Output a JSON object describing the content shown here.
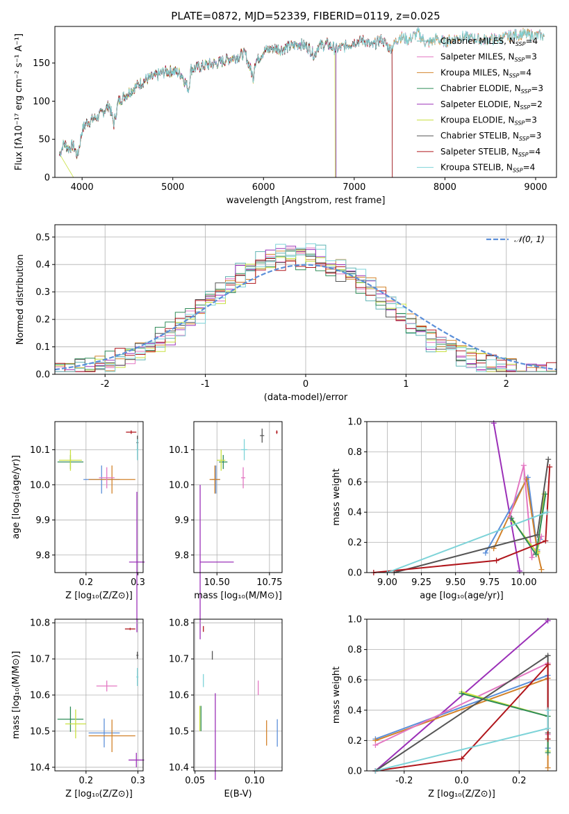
{
  "figure": {
    "title": "PLATE=0872, MJD=52339, FIBERID=0119, z=0.025"
  },
  "chart_data": [
    {
      "type": "line",
      "panel": "spectrum",
      "xlabel": "wavelength [Angstrom, rest frame]",
      "ylabel": "Flux [fλ10⁻¹⁷ erg cm⁻² s⁻¹ A⁻¹]",
      "xlim": [
        3700,
        9230
      ],
      "ylim": [
        0,
        198
      ],
      "xticks": [
        4000,
        5000,
        6000,
        7000,
        8000,
        9000
      ],
      "yticks": [
        0,
        50,
        100,
        150
      ],
      "grid": false,
      "legend": "upper right",
      "spectrum_anchors": {
        "x": [
          3750,
          3800,
          3850,
          3900,
          3950,
          4000,
          4050,
          4100,
          4200,
          4300,
          4350,
          4400,
          4500,
          4600,
          4700,
          4800,
          4900,
          5000,
          5100,
          5175,
          5200,
          5300,
          5400,
          5500,
          5600,
          5700,
          5800,
          5890,
          5900,
          6000,
          6100,
          6200,
          6300,
          6400,
          6500,
          6563,
          6600,
          6700,
          6800,
          6900,
          7000,
          7100,
          7200,
          7300,
          7400,
          7500,
          7600,
          7700,
          7800,
          7900,
          8000,
          8200,
          8400,
          8600,
          8800,
          9000
        ],
        "y": [
          30,
          45,
          38,
          42,
          28,
          62,
          72,
          75,
          82,
          95,
          70,
          100,
          110,
          120,
          128,
          132,
          138,
          140,
          135,
          115,
          142,
          145,
          148,
          150,
          155,
          158,
          162,
          130,
          150,
          165,
          170,
          168,
          172,
          175,
          170,
          160,
          172,
          175,
          168,
          172,
          178,
          180,
          172,
          182,
          168,
          185,
          180,
          190,
          175,
          182,
          178,
          185,
          180,
          182,
          188,
          186
        ]
      },
      "series": [
        {
          "name": "Chabrier MILES, N$_{SSP}$=4",
          "label_main": "Chabrier MILES, N",
          "label_sub": "SSP",
          "label_tail": "=4",
          "color": "#5fb3b3",
          "x_end": 9100
        },
        {
          "name": "Salpeter MILES, N$_{SSP}$=3",
          "label_main": "Salpeter MILES, N",
          "label_sub": "SSP",
          "label_tail": "=3",
          "color": "#e377c2",
          "x_end": 9100
        },
        {
          "name": "Kroupa MILES, N$_{SSP}$=4",
          "label_main": "Kroupa MILES, N",
          "label_sub": "SSP",
          "label_tail": "=4",
          "color": "#d2822a",
          "x_end": 9100
        },
        {
          "name": "Chabrier ELODIE, N$_{SSP}$=3",
          "label_main": "Chabrier ELODIE, N",
          "label_sub": "SSP",
          "label_tail": "=3",
          "color": "#2e8b57",
          "x_end": 6800
        },
        {
          "name": "Salpeter ELODIE, N$_{SSP}$=2",
          "label_main": "Salpeter ELODIE, N",
          "label_sub": "SSP",
          "label_tail": "=2",
          "color": "#9b30b8",
          "x_end": 6800
        },
        {
          "name": "Kroupa ELODIE, N$_{SSP}$=3",
          "label_main": "Kroupa ELODIE, N",
          "label_sub": "SSP",
          "label_tail": "=3",
          "color": "#c8e040",
          "x_end": 6790
        },
        {
          "name": "Chabrier STELIB, N$_{SSP}$=3",
          "label_main": "Chabrier STELIB, N",
          "label_sub": "SSP",
          "label_tail": "=3",
          "color": "#555555",
          "x_end": 7420
        },
        {
          "name": "Salpeter STELIB, N$_{SSP}$=4",
          "label_main": "Salpeter STELIB, N",
          "label_sub": "SSP",
          "label_tail": "=4",
          "color": "#b0161c",
          "x_end": 7420
        },
        {
          "name": "Kroupa STELIB, N$_{SSP}$=4",
          "label_main": "Kroupa STELIB, N",
          "label_sub": "SSP",
          "label_tail": "=4",
          "color": "#7dd3d8",
          "x_end": 9100
        }
      ]
    },
    {
      "type": "histogram",
      "panel": "residuals",
      "xlabel": "(data-model)/error",
      "ylabel": "Normed distribution",
      "xlim": [
        -2.5,
        2.5
      ],
      "ylim": [
        0,
        0.545
      ],
      "xticks": [
        -2,
        -1,
        0,
        1,
        2
      ],
      "yticks": [
        0.0,
        0.1,
        0.2,
        0.3,
        0.4,
        0.5
      ],
      "grid": true,
      "legend": "upper right",
      "reference_curve": {
        "name": "$\\mathcal{N}(0,1)$",
        "label": "𝒩(0, 1)",
        "mean": 0,
        "sigma": 1,
        "color": "#5b8fd9",
        "dashed": true
      },
      "bin_width": 0.1,
      "series_bins_from": -2.5
    },
    {
      "type": "scatter-errorbar",
      "panel": "Z-age",
      "xlabel": "Z [log₁₀(Z/Z⊙)]",
      "ylabel": "age  [log₁₀(age/yr)]",
      "xlim": [
        0.14,
        0.31
      ],
      "ylim": [
        9.75,
        10.18
      ],
      "xticks": [
        0.2,
        0.3
      ],
      "yticks": [
        9.8,
        9.9,
        10.0,
        10.1
      ],
      "grid": true,
      "points": [
        {
          "color": "#b0161c",
          "x": 0.287,
          "y": 10.15,
          "xerr": 0.01,
          "yerr": 0.005
        },
        {
          "color": "#555555",
          "x": 0.299,
          "y": 10.12,
          "xerr": 0.002,
          "yerr": 0.02
        },
        {
          "color": "#7dd3d8",
          "x": 0.299,
          "y": 10.1,
          "xerr": 0.002,
          "yerr": 0.03
        },
        {
          "color": "#2e8b57",
          "x": 0.17,
          "y": 10.065,
          "xerr": 0.025,
          "yerr": 0.02
        },
        {
          "color": "#c8e040",
          "x": 0.17,
          "y": 10.07,
          "xerr": 0.022,
          "yerr": 0.03
        },
        {
          "color": "#5b8fd9",
          "x": 0.23,
          "y": 10.015,
          "xerr": 0.035,
          "yerr": 0.04
        },
        {
          "color": "#d2822a",
          "x": 0.25,
          "y": 10.015,
          "xerr": 0.045,
          "yerr": 0.04
        },
        {
          "color": "#e377c2",
          "x": 0.24,
          "y": 10.02,
          "xerr": 0.015,
          "yerr": 0.03
        },
        {
          "color": "#9b30b8",
          "x": 0.298,
          "y": 9.78,
          "xerr": 0.015,
          "yerr": 0.2
        }
      ]
    },
    {
      "type": "scatter-errorbar",
      "panel": "mass-age",
      "xlabel": "mass [log₁₀(M/M⊙)]",
      "ylabel": "",
      "xlim": [
        10.39,
        10.81
      ],
      "ylim": [
        9.75,
        10.18
      ],
      "xticks": [
        10.5,
        10.75
      ],
      "yticks": [
        9.8,
        9.9,
        10.0,
        10.1
      ],
      "grid": true,
      "points": [
        {
          "color": "#b0161c",
          "x": 10.785,
          "y": 10.15,
          "xerr": 0.004,
          "yerr": 0.005
        },
        {
          "color": "#555555",
          "x": 10.715,
          "y": 10.14,
          "xerr": 0.01,
          "yerr": 0.02
        },
        {
          "color": "#7dd3d8",
          "x": 10.63,
          "y": 10.1,
          "xerr": 0.015,
          "yerr": 0.03
        },
        {
          "color": "#2e8b57",
          "x": 10.53,
          "y": 10.065,
          "xerr": 0.02,
          "yerr": 0.02
        },
        {
          "color": "#c8e040",
          "x": 10.52,
          "y": 10.07,
          "xerr": 0.02,
          "yerr": 0.03
        },
        {
          "color": "#5b8fd9",
          "x": 10.495,
          "y": 10.015,
          "xerr": 0.02,
          "yerr": 0.04
        },
        {
          "color": "#d2822a",
          "x": 10.49,
          "y": 10.015,
          "xerr": 0.025,
          "yerr": 0.04
        },
        {
          "color": "#e377c2",
          "x": 10.625,
          "y": 10.02,
          "xerr": 0.01,
          "yerr": 0.03
        },
        {
          "color": "#9b30b8",
          "x": 10.42,
          "y": 9.78,
          "xerr": 0.0,
          "yerr": 0.22
        },
        {
          "color": "#9b30b8",
          "x": 10.5,
          "y": 9.78,
          "xerr": 0.08,
          "yerr": 0.0
        }
      ]
    },
    {
      "type": "line",
      "panel": "age-weight",
      "xlabel": "age  [log₁₀(age/yr)]",
      "ylabel": "mass weight",
      "xlim": [
        8.85,
        10.24
      ],
      "ylim": [
        0,
        1.0
      ],
      "xticks": [
        9.0,
        9.25,
        9.5,
        9.75,
        10.0
      ],
      "yticks": [
        0.0,
        0.2,
        0.4,
        0.6,
        0.8,
        1.0
      ],
      "grid": true,
      "series": [
        {
          "color": "#9b30b8",
          "x": [
            9.78,
            9.97
          ],
          "y": [
            0.99,
            0.01
          ]
        },
        {
          "color": "#5b8fd9",
          "x": [
            9.72,
            10.03,
            10.1,
            10.12
          ],
          "y": [
            0.13,
            0.63,
            0.15,
            0.22
          ]
        },
        {
          "color": "#d2822a",
          "x": [
            9.78,
            10.02,
            10.1,
            10.13
          ],
          "y": [
            0.16,
            0.62,
            0.14,
            0.02
          ]
        },
        {
          "color": "#e377c2",
          "x": [
            9.9,
            10.0,
            10.06,
            10.13
          ],
          "y": [
            0.37,
            0.71,
            0.1,
            0.24
          ]
        },
        {
          "color": "#c8e040",
          "x": [
            9.92,
            10.1,
            10.15
          ],
          "y": [
            0.34,
            0.13,
            0.52
          ]
        },
        {
          "color": "#2e8b57",
          "x": [
            9.91,
            10.09,
            10.16
          ],
          "y": [
            0.36,
            0.12,
            0.52
          ]
        },
        {
          "color": "#555555",
          "x": [
            9.05,
            10.1,
            10.18
          ],
          "y": [
            0.0,
            0.25,
            0.75
          ]
        },
        {
          "color": "#b0161c",
          "x": [
            8.9,
            9.8,
            10.16,
            10.19
          ],
          "y": [
            0.0,
            0.08,
            0.21,
            0.7
          ]
        },
        {
          "color": "#7dd3d8",
          "x": [
            9.0,
            10.17
          ],
          "y": [
            0.0,
            0.4
          ]
        }
      ]
    },
    {
      "type": "scatter-errorbar",
      "panel": "Z-mass",
      "xlabel": "Z [log₁₀(Z/Z⊙)]",
      "ylabel": "mass [log₁₀(M/M⊙)]",
      "xlim": [
        0.14,
        0.31
      ],
      "ylim": [
        10.39,
        10.81
      ],
      "xticks": [
        0.2,
        0.3
      ],
      "yticks": [
        10.4,
        10.5,
        10.6,
        10.7,
        10.8
      ],
      "grid": true,
      "points": [
        {
          "color": "#b0161c",
          "x": 0.285,
          "y": 10.783,
          "xerr": 0.01,
          "yerr": 0.003
        },
        {
          "color": "#555555",
          "x": 0.299,
          "y": 10.71,
          "xerr": 0.002,
          "yerr": 0.01
        },
        {
          "color": "#7dd3d8",
          "x": 0.299,
          "y": 10.65,
          "xerr": 0.002,
          "yerr": 0.025
        },
        {
          "color": "#2e8b57",
          "x": 0.17,
          "y": 10.533,
          "xerr": 0.025,
          "yerr": 0.035
        },
        {
          "color": "#c8e040",
          "x": 0.18,
          "y": 10.52,
          "xerr": 0.02,
          "yerr": 0.04
        },
        {
          "color": "#5b8fd9",
          "x": 0.235,
          "y": 10.495,
          "xerr": 0.03,
          "yerr": 0.04
        },
        {
          "color": "#d2822a",
          "x": 0.25,
          "y": 10.487,
          "xerr": 0.045,
          "yerr": 0.045
        },
        {
          "color": "#e377c2",
          "x": 0.24,
          "y": 10.625,
          "xerr": 0.02,
          "yerr": 0.015
        },
        {
          "color": "#9b30b8",
          "x": 0.297,
          "y": 10.42,
          "xerr": 0.015,
          "yerr": 0.02
        }
      ]
    },
    {
      "type": "scatter-errorbar",
      "panel": "EBV-mass",
      "xlabel": "E(B-V)",
      "ylabel": "",
      "xlim": [
        0.049,
        0.123
      ],
      "ylim": [
        10.39,
        10.81
      ],
      "xticks": [
        0.05,
        0.1
      ],
      "yticks": [
        10.4,
        10.5,
        10.6,
        10.7,
        10.8
      ],
      "grid": true,
      "points": [
        {
          "color": "#b0161c",
          "x": 0.057,
          "y": 10.783,
          "xerr": 0.0,
          "yerr": 0.008
        },
        {
          "color": "#555555",
          "x": 0.0645,
          "y": 10.71,
          "xerr": 0.0,
          "yerr": 0.012
        },
        {
          "color": "#7dd3d8",
          "x": 0.057,
          "y": 10.64,
          "xerr": 0.0,
          "yerr": 0.018
        },
        {
          "color": "#2e8b57",
          "x": 0.055,
          "y": 10.535,
          "xerr": 0.0,
          "yerr": 0.035
        },
        {
          "color": "#c8e040",
          "x": 0.054,
          "y": 10.535,
          "xerr": 0.0,
          "yerr": 0.035
        },
        {
          "color": "#9b30b8",
          "x": 0.067,
          "y": 10.485,
          "xerr": 0.0,
          "yerr": 0.12
        },
        {
          "color": "#e377c2",
          "x": 0.103,
          "y": 10.62,
          "xerr": 0.0,
          "yerr": 0.02
        },
        {
          "color": "#d2822a",
          "x": 0.11,
          "y": 10.495,
          "xerr": 0.0,
          "yerr": 0.035
        },
        {
          "color": "#5b8fd9",
          "x": 0.119,
          "y": 10.495,
          "xerr": 0.0,
          "yerr": 0.038
        }
      ]
    },
    {
      "type": "line",
      "panel": "Z-weight",
      "xlabel": "Z [log₁₀(Z/Z⊙)]",
      "ylabel": "mass weight",
      "xlim": [
        -0.33,
        0.33
      ],
      "ylim": [
        0,
        1.0
      ],
      "xticks": [
        -0.2,
        0.0,
        0.2
      ],
      "yticks": [
        0.0,
        0.2,
        0.4,
        0.6,
        0.8,
        1.0
      ],
      "grid": true,
      "series": [
        {
          "color": "#9b30b8",
          "x": [
            -0.3,
            0.3
          ],
          "y": [
            0.0,
            0.99
          ]
        },
        {
          "color": "#5b8fd9",
          "x": [
            -0.3,
            0.3,
            0.3
          ],
          "y": [
            0.21,
            0.63,
            0.15
          ]
        },
        {
          "color": "#d2822a",
          "x": [
            -0.3,
            0.3,
            0.3
          ],
          "y": [
            0.2,
            0.61,
            0.02
          ]
        },
        {
          "color": "#e377c2",
          "x": [
            -0.3,
            0.3,
            0.3
          ],
          "y": [
            0.17,
            0.71,
            0.24
          ]
        },
        {
          "color": "#c8e040",
          "x": [
            0.0,
            0.3,
            0.3
          ],
          "y": [
            0.52,
            0.36,
            0.13
          ]
        },
        {
          "color": "#2e8b57",
          "x": [
            0.0,
            0.3,
            0.3
          ],
          "y": [
            0.51,
            0.36,
            0.12
          ]
        },
        {
          "color": "#555555",
          "x": [
            -0.3,
            0.3,
            0.3
          ],
          "y": [
            0.0,
            0.76,
            0.25
          ]
        },
        {
          "color": "#b0161c",
          "x": [
            -0.3,
            0.0,
            0.3,
            0.3
          ],
          "y": [
            0.0,
            0.08,
            0.7,
            0.21
          ]
        },
        {
          "color": "#7dd3d8",
          "x": [
            -0.3,
            0.3,
            0.3
          ],
          "y": [
            0.0,
            0.28,
            0.4
          ]
        }
      ]
    }
  ]
}
